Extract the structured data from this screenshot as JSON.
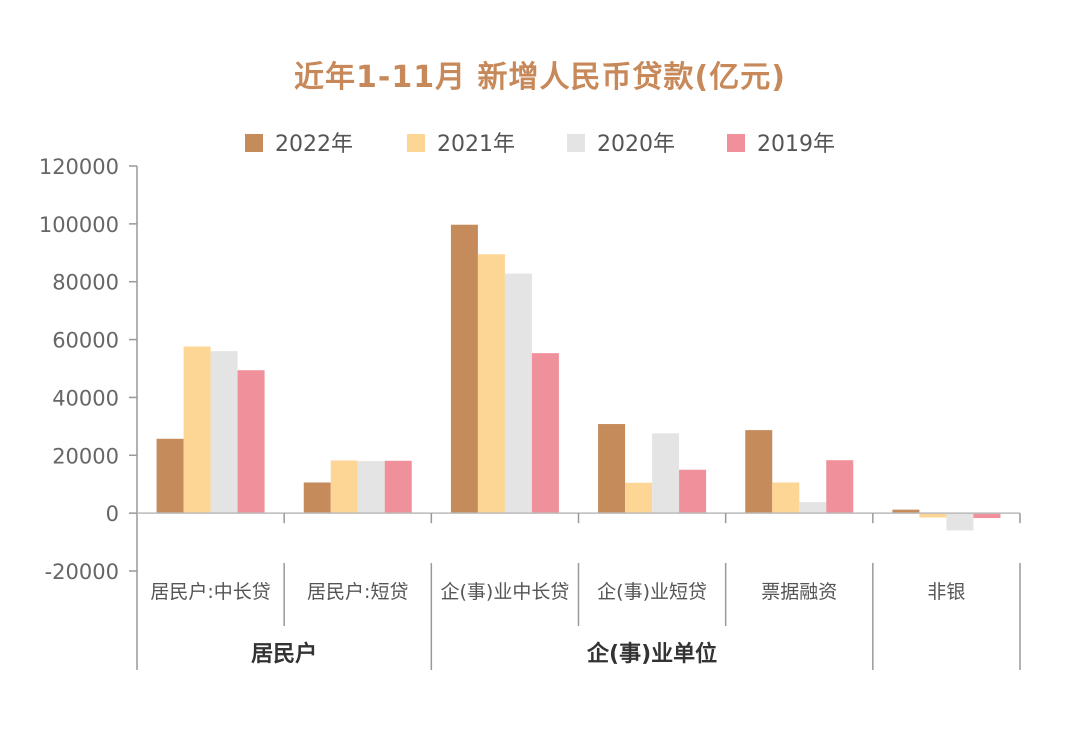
{
  "chart_data": {
    "type": "bar",
    "title": "近年1-11月 新增人民币贷款(亿元)",
    "categories": [
      "居民户:中长贷",
      "居民户:短贷",
      "企(事)业中长贷",
      "企(事)业短贷",
      "票据融资",
      "非银"
    ],
    "groups": [
      {
        "label": "居民户",
        "categories": [
          "居民户:中长贷",
          "居民户:短贷"
        ]
      },
      {
        "label": "企(事)业单位",
        "categories": [
          "企(事)业中长贷",
          "企(事)业短贷",
          "票据融资"
        ]
      },
      {
        "label": "",
        "categories": [
          "非银"
        ]
      }
    ],
    "series": [
      {
        "name": "2022年",
        "color": "#c68b5b",
        "values": [
          25700,
          10600,
          99700,
          30800,
          28700,
          1200
        ]
      },
      {
        "name": "2021年",
        "color": "#fdd594",
        "values": [
          57600,
          18200,
          89500,
          10500,
          10600,
          -1500
        ]
      },
      {
        "name": "2020年",
        "color": "#e4e4e4",
        "values": [
          56000,
          18000,
          82800,
          27600,
          3800,
          -6000
        ]
      },
      {
        "name": "2019年",
        "color": "#f0909a",
        "values": [
          49400,
          18100,
          55300,
          15000,
          18300,
          -1700
        ]
      }
    ],
    "yticks": [
      "120000",
      "100000",
      "80000",
      "60000",
      "40000",
      "20000",
      "0",
      "-20000"
    ],
    "ylim": [
      -20000,
      120000
    ],
    "legend_position": "top",
    "grid": false
  }
}
